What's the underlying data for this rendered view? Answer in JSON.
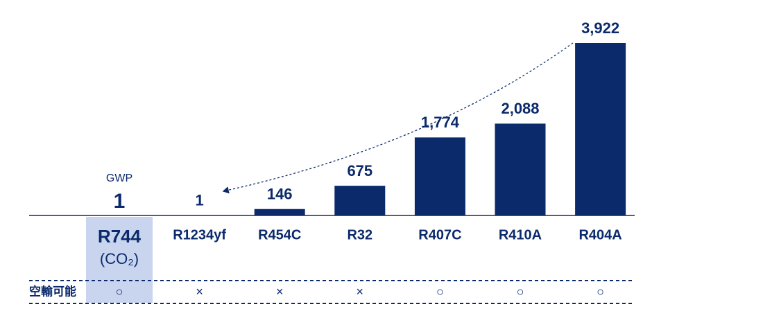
{
  "chart_data": {
    "type": "bar",
    "value_label_title": "GWP",
    "categories": [
      "R744",
      "R1234yf",
      "R454C",
      "R32",
      "R407C",
      "R410A",
      "R404A"
    ],
    "category_notes": [
      "(CO₂)",
      null,
      null,
      null,
      null,
      null,
      null
    ],
    "values": [
      1,
      1,
      146,
      675,
      1774,
      2088,
      3922
    ],
    "value_labels": [
      "1",
      "1",
      "146",
      "675",
      "1,774",
      "2,088",
      "3,922"
    ],
    "color": "#0b2a6b",
    "row": {
      "label": "空輸可能",
      "marks": [
        "○",
        "×",
        "×",
        "×",
        "○",
        "○",
        "○"
      ]
    }
  }
}
